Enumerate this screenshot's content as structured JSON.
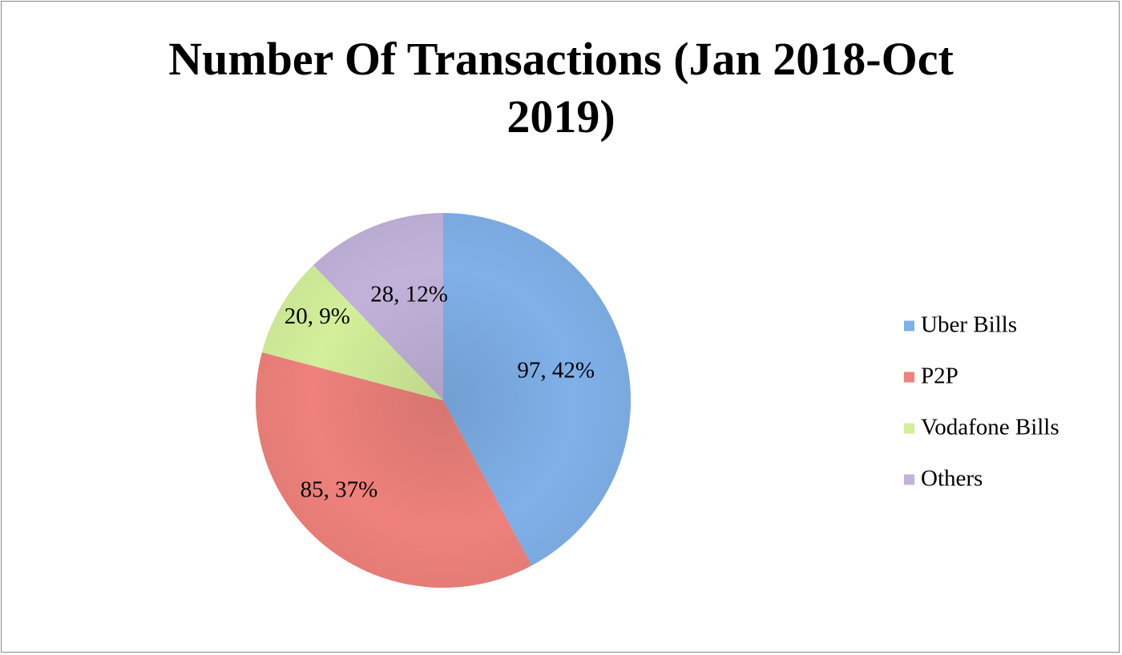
{
  "chart_data": {
    "type": "pie",
    "title_lines": [
      "Number Of Transactions (Jan 2018-Oct",
      "2019)"
    ],
    "slices": [
      {
        "name": "Uber Bills",
        "value": 97,
        "percent": "42%",
        "label": "97, 42%",
        "color": "#7fb0e8"
      },
      {
        "name": "P2P",
        "value": 85,
        "percent": "37%",
        "label": "85, 37%",
        "color": "#ee817b"
      },
      {
        "name": "Vodafone Bills",
        "value": 20,
        "percent": "9%",
        "label": "20, 9%",
        "color": "#d3ef9a"
      },
      {
        "name": "Others",
        "value": 28,
        "percent": "12%",
        "label": "28, 12%",
        "color": "#c2b2da"
      }
    ],
    "legend_position": "right",
    "start_angle": "12 o'clock",
    "direction": "clockwise"
  }
}
